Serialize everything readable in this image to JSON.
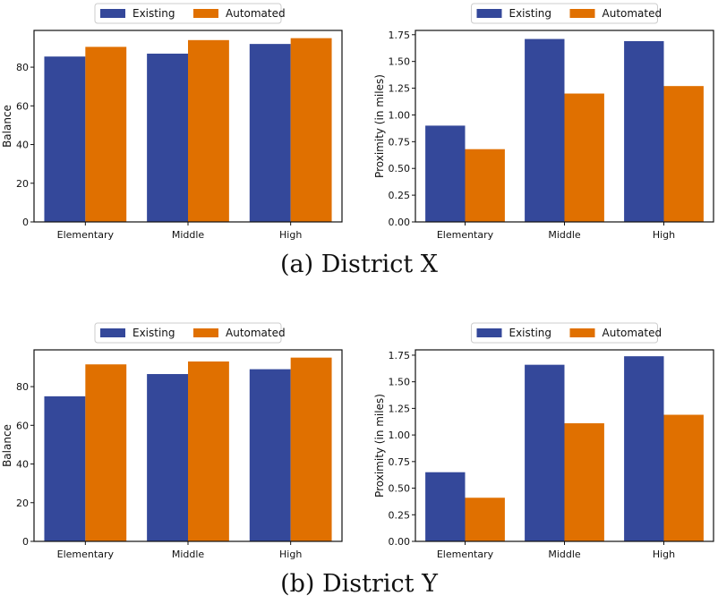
{
  "colors": {
    "existing": "#34489a",
    "automated": "#e07000"
  },
  "captions": {
    "a": "(a) District X",
    "b": "(b) District Y"
  },
  "chart_data": [
    {
      "type": "bar",
      "panel": "District X - Balance",
      "categories": [
        "Elementary",
        "Middle",
        "High"
      ],
      "series": [
        {
          "name": "Existing",
          "values": [
            85.5,
            87,
            92
          ]
        },
        {
          "name": "Automated",
          "values": [
            90.5,
            94,
            95
          ]
        }
      ],
      "ylabel": "Balance",
      "ylim": [
        0,
        99
      ],
      "yticks": [
        0,
        20,
        40,
        60,
        80
      ],
      "ytick_labels": [
        "0",
        "20",
        "40",
        "60",
        "80"
      ],
      "legend": "top-center"
    },
    {
      "type": "bar",
      "panel": "District X - Proximity",
      "categories": [
        "Elementary",
        "Middle",
        "High"
      ],
      "series": [
        {
          "name": "Existing",
          "values": [
            0.9,
            1.71,
            1.69
          ]
        },
        {
          "name": "Automated",
          "values": [
            0.68,
            1.2,
            1.27
          ]
        }
      ],
      "ylabel": "Proximity (in miles)",
      "ylim": [
        0,
        1.79
      ],
      "yticks": [
        0,
        0.25,
        0.5,
        0.75,
        1.0,
        1.25,
        1.5,
        1.75
      ],
      "ytick_labels": [
        "0.00",
        "0.25",
        "0.50",
        "0.75",
        "1.00",
        "1.25",
        "1.50",
        "1.75"
      ],
      "legend": "top-center"
    },
    {
      "type": "bar",
      "panel": "District Y - Balance",
      "categories": [
        "Elementary",
        "Middle",
        "High"
      ],
      "series": [
        {
          "name": "Existing",
          "values": [
            75,
            86.5,
            89
          ]
        },
        {
          "name": "Automated",
          "values": [
            91.5,
            93,
            95
          ]
        }
      ],
      "ylabel": "Balance",
      "ylim": [
        0,
        99
      ],
      "yticks": [
        0,
        20,
        40,
        60,
        80
      ],
      "ytick_labels": [
        "0",
        "20",
        "40",
        "60",
        "80"
      ],
      "legend": "top-center"
    },
    {
      "type": "bar",
      "panel": "District Y - Proximity",
      "categories": [
        "Elementary",
        "Middle",
        "High"
      ],
      "series": [
        {
          "name": "Existing",
          "values": [
            0.65,
            1.66,
            1.74
          ]
        },
        {
          "name": "Automated",
          "values": [
            0.41,
            1.11,
            1.19
          ]
        }
      ],
      "ylabel": "Proximity (in miles)",
      "ylim": [
        0,
        1.8
      ],
      "yticks": [
        0,
        0.25,
        0.5,
        0.75,
        1.0,
        1.25,
        1.5,
        1.75
      ],
      "ytick_labels": [
        "0.00",
        "0.25",
        "0.50",
        "0.75",
        "1.00",
        "1.25",
        "1.50",
        "1.75"
      ],
      "legend": "top-center"
    }
  ]
}
